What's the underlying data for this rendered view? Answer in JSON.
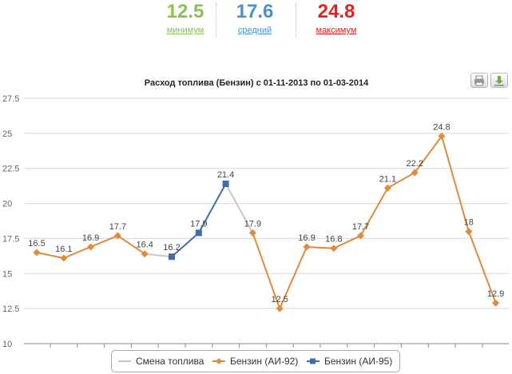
{
  "stats": [
    {
      "value": "12.5",
      "label": "минимум",
      "color": "#8cc152"
    },
    {
      "value": "17.6",
      "label": "средний",
      "color": "#4a8fd4"
    },
    {
      "value": "24.8",
      "label": "максимум",
      "color": "#e52222"
    }
  ],
  "toolbar": {
    "print_icon": "printer-icon",
    "download_icon": "download-icon"
  },
  "chart_data": {
    "type": "line",
    "title": "Расход топлива (Бензин) с 01-11-2013 по 01-03-2014",
    "xlabel": "",
    "ylabel": "",
    "ylim": [
      10,
      27.5
    ],
    "yticks": [
      "10",
      "12.5",
      "15",
      "17.5",
      "20",
      "22.5",
      "25",
      "27.5"
    ],
    "x": [
      0,
      1,
      2,
      3,
      4,
      5,
      6,
      7,
      8,
      9,
      10,
      11,
      12,
      13,
      14,
      15,
      16,
      17
    ],
    "values": [
      16.5,
      16.1,
      16.9,
      17.7,
      16.4,
      16.2,
      17.9,
      21.4,
      17.9,
      12.5,
      16.9,
      16.8,
      17.7,
      21.1,
      22.2,
      24.8,
      18,
      12.9
    ],
    "labels": [
      "16.5",
      "16.1",
      "16.9",
      "17.7",
      "16.4",
      "16.2",
      "17.9",
      "21.4",
      "17.9",
      "12.5",
      "16.9",
      "16.8",
      "17.7",
      "21.1",
      "22.2",
      "24.8",
      "18",
      "12.9"
    ],
    "series": [
      {
        "name": "Смена топлива",
        "color": "#c8c8c8",
        "segments": [
          [
            4,
            5
          ],
          [
            7,
            8
          ]
        ]
      },
      {
        "name": "Бензин (АИ-92)",
        "color": "#e08a3c",
        "marker": "diamond",
        "segments": [
          [
            0,
            4
          ],
          [
            8,
            17
          ]
        ]
      },
      {
        "name": "Бензин (АИ-95)",
        "color": "#3f6ea8",
        "marker": "square",
        "segments": [
          [
            5,
            7
          ]
        ]
      }
    ],
    "grid": true,
    "legend": "bottom"
  }
}
